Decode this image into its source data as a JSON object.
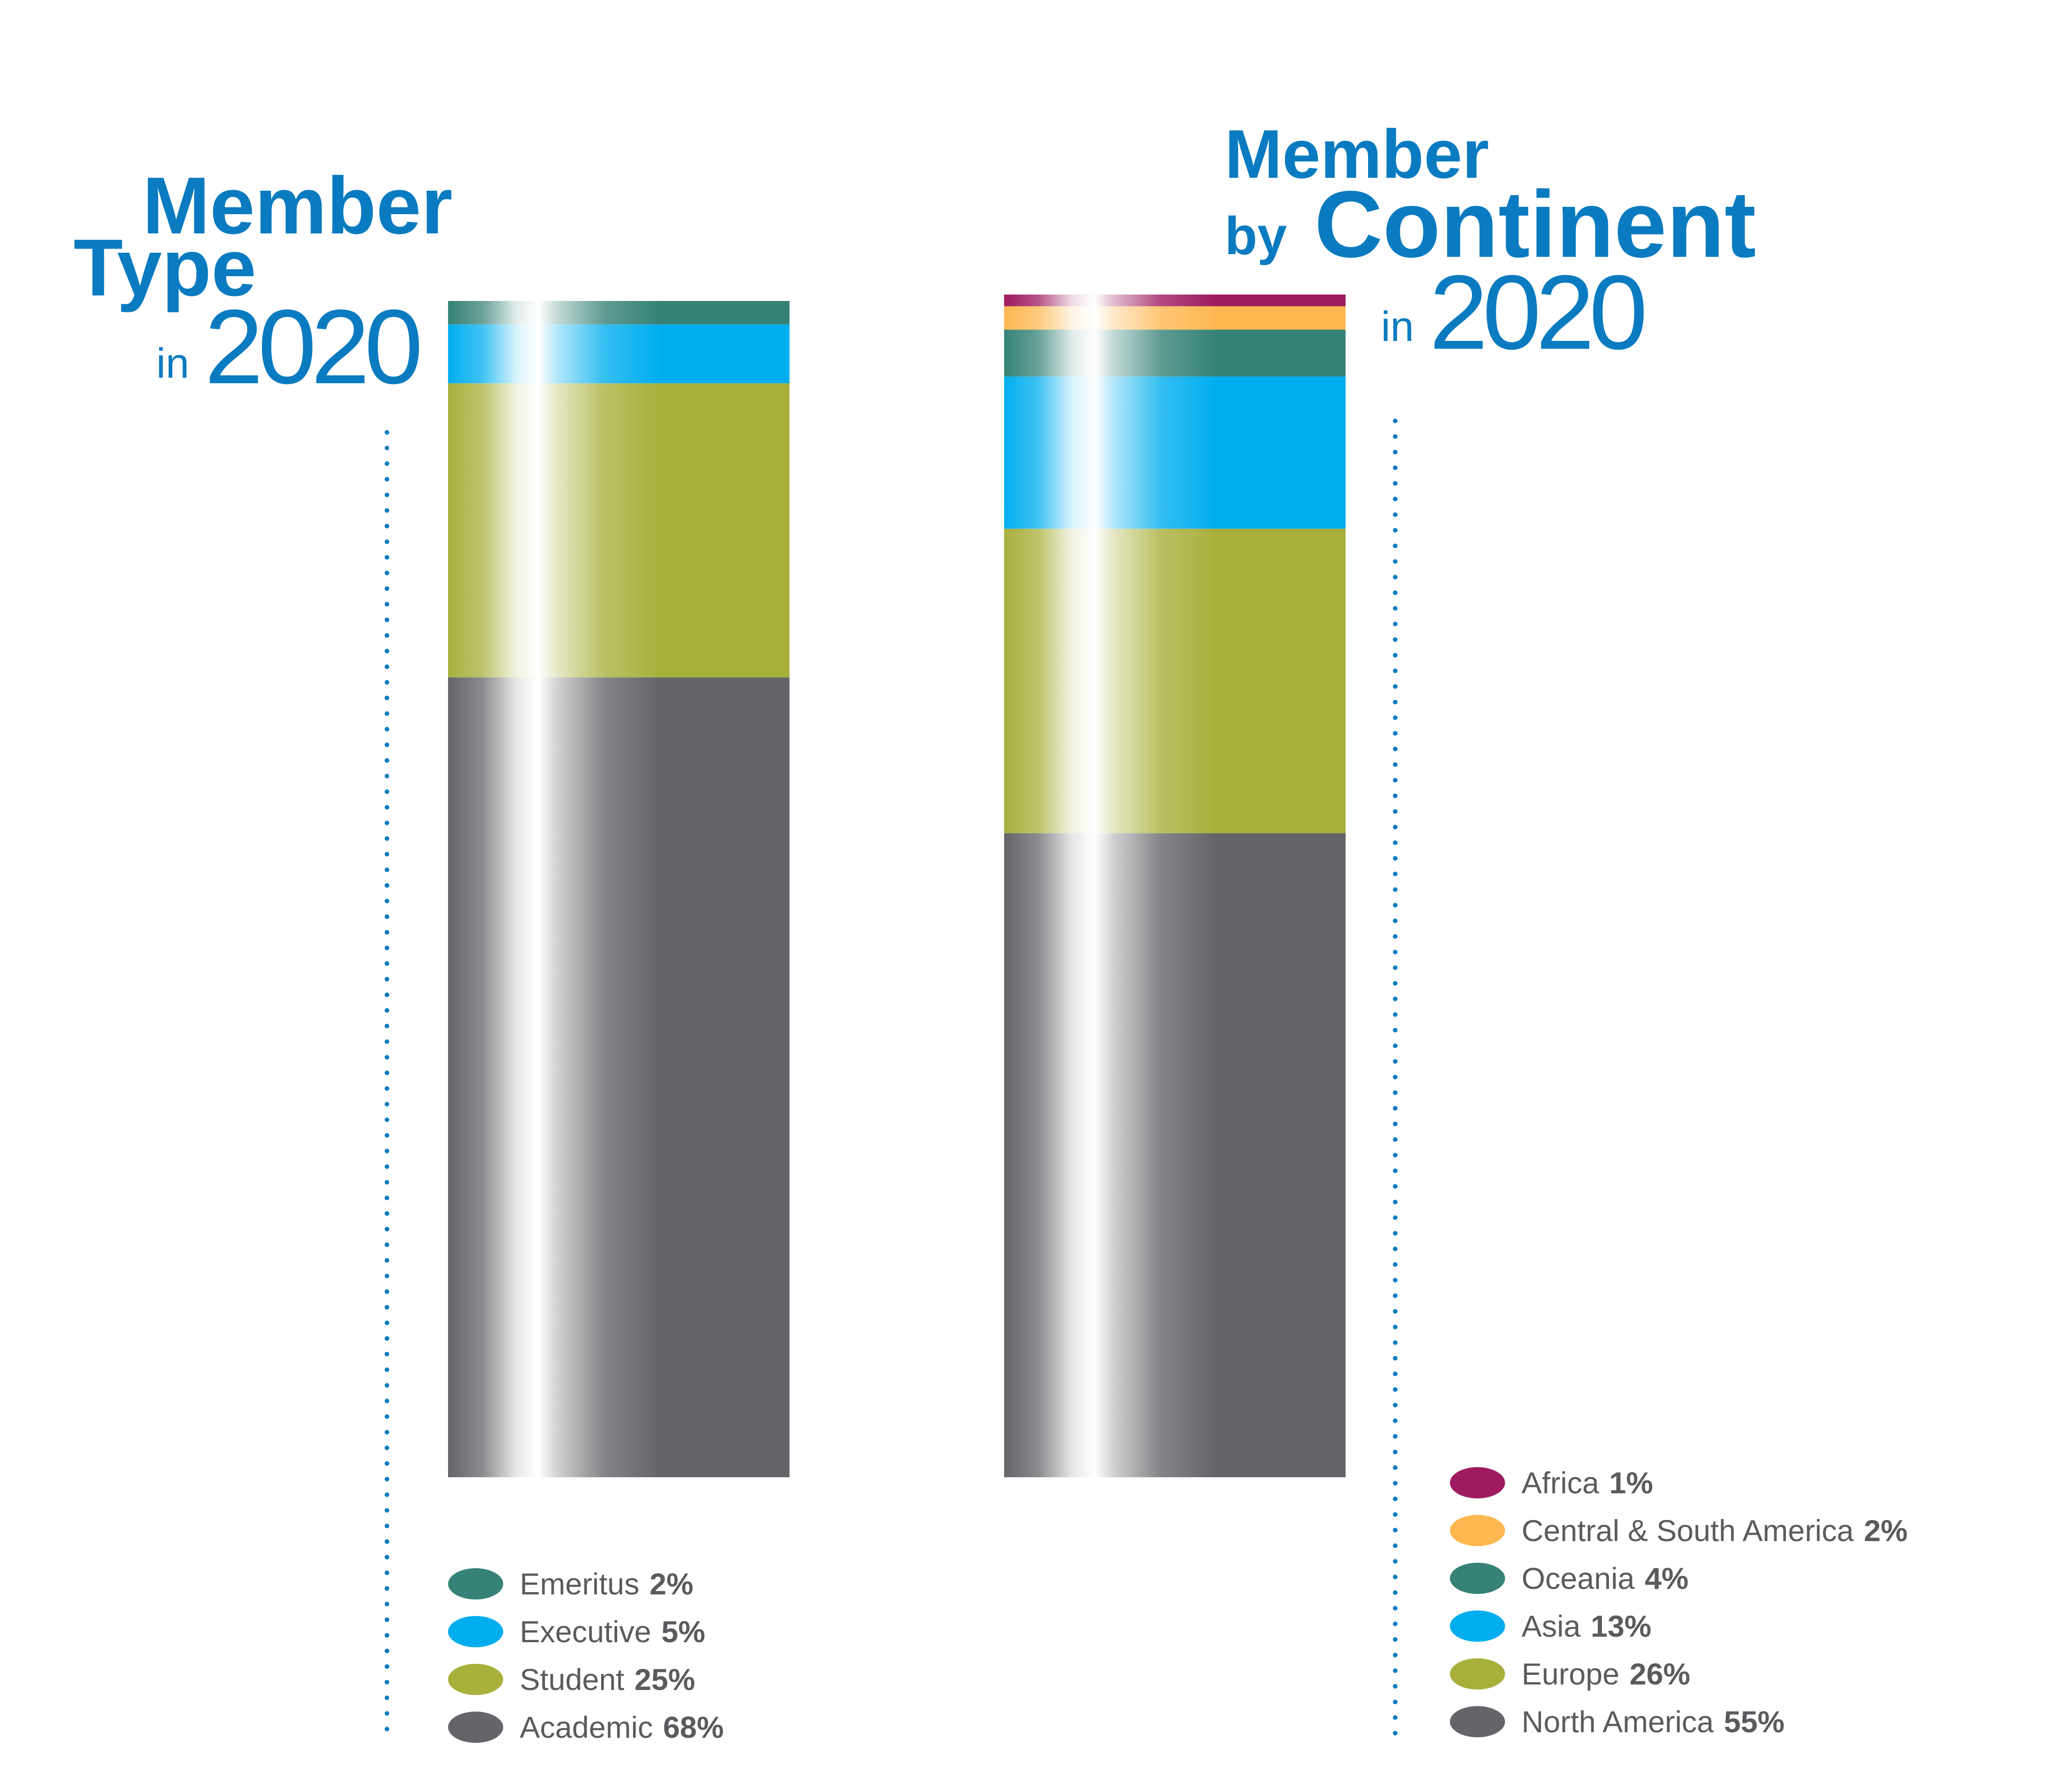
{
  "colors": {
    "title": "#0a7bc0",
    "dots": "#0a7bc0",
    "legend_text": "#5b5b5f"
  },
  "chart_data": [
    {
      "type": "bar",
      "stacked": true,
      "title_parts": {
        "line1": "Member",
        "line2": "Type",
        "in": "in",
        "year": "2020"
      },
      "ylim": [
        0,
        100
      ],
      "series": [
        {
          "name": "Academic",
          "value_label": "68%",
          "value": 68,
          "color": "#646569"
        },
        {
          "name": "Student",
          "value_label": "25%",
          "value": 25,
          "color": "#a8b03c"
        },
        {
          "name": "Executive",
          "value_label": "5%",
          "value": 5,
          "color": "#00aeef"
        },
        {
          "name": "Emeritus",
          "value_label": "2%",
          "value": 2,
          "color": "#368277"
        }
      ],
      "legend_order": [
        "Emeritus",
        "Executive",
        "Student",
        "Academic"
      ]
    },
    {
      "type": "bar",
      "stacked": true,
      "title_parts": {
        "line1": "Member",
        "by": "by",
        "line2": "Continent",
        "in": "in",
        "year": "2020"
      },
      "ylim": [
        0,
        101
      ],
      "series": [
        {
          "name": "North America",
          "value_label": "55%",
          "value": 55,
          "color": "#646569"
        },
        {
          "name": "Europe",
          "value_label": "26%",
          "value": 26,
          "color": "#a8b03c"
        },
        {
          "name": "Asia",
          "value_label": "13%",
          "value": 13,
          "color": "#00aeef"
        },
        {
          "name": "Oceania",
          "value_label": "4%",
          "value": 4,
          "color": "#368277"
        },
        {
          "name": "Central & South America",
          "value_label": "2%",
          "value": 2,
          "color": "#fdb851"
        },
        {
          "name": "Africa",
          "value_label": "1%",
          "value": 1,
          "color": "#9e1b5f"
        }
      ],
      "legend_order": [
        "Africa",
        "Central & South America",
        "Oceania",
        "Asia",
        "Europe",
        "North America"
      ]
    }
  ]
}
